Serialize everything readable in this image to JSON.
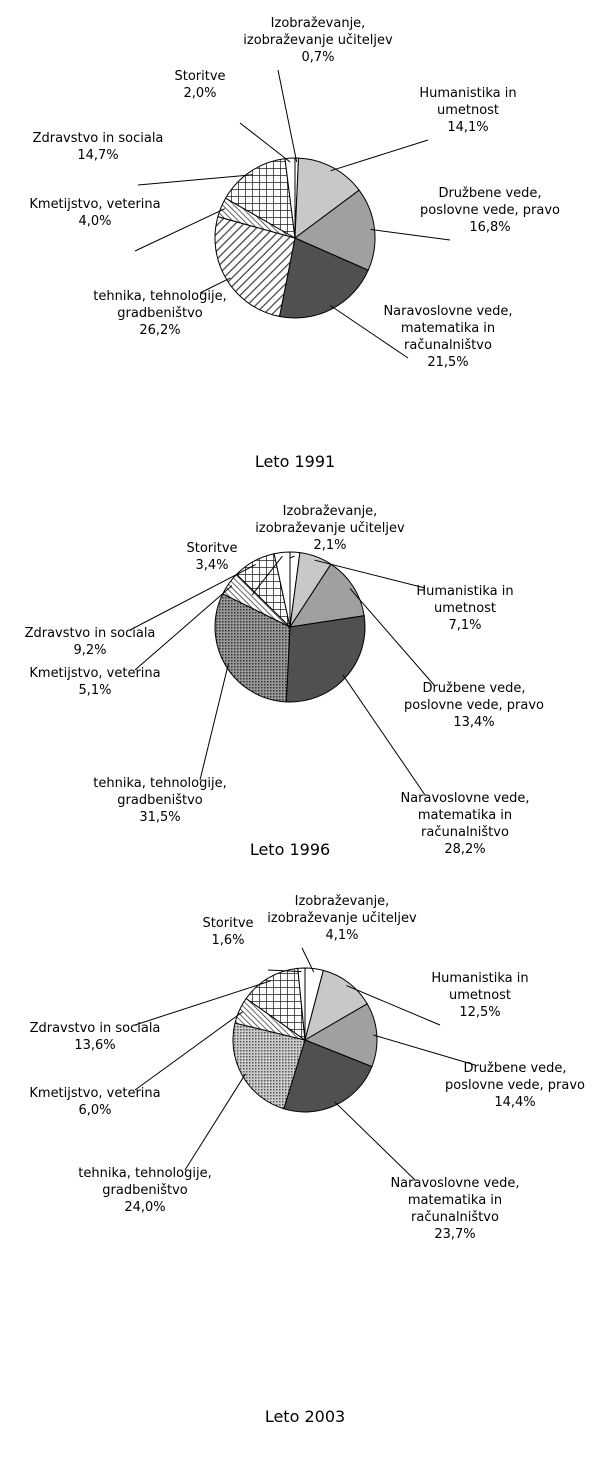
{
  "chart_data": [
    {
      "type": "pie",
      "title": "Leto 1991",
      "categories": [
        "Izobraževanje, izobraževanje učiteljev",
        "Humanistika in umetnost",
        "Družbene vede, poslovne vede, pravo",
        "Naravoslovne vede, matematika in računalništvo",
        "tehnika, tehnologije, gradbeništvo",
        "Kmetijstvo, veterina",
        "Zdravstvo in sociala",
        "Storitve"
      ],
      "values": [
        0.7,
        14.1,
        16.8,
        21.5,
        26.2,
        4.0,
        14.7,
        2.0
      ],
      "value_labels": [
        "0,7%",
        "14,1%",
        "16,8%",
        "21,5%",
        "26,2%",
        "4,0%",
        "14,7%",
        "2,0%"
      ]
    },
    {
      "type": "pie",
      "title": "Leto 1996",
      "categories": [
        "Izobraževanje, izobraževanje učiteljev",
        "Humanistika in umetnost",
        "Družbene vede, poslovne vede, pravo",
        "Naravoslovne vede, matematika in računalništvo",
        "tehnika, tehnologije, gradbeništvo",
        "Kmetijstvo, veterina",
        "Zdravstvo in sociala",
        "Storitve"
      ],
      "values": [
        2.1,
        7.1,
        13.4,
        28.2,
        31.5,
        5.1,
        9.2,
        3.4
      ],
      "value_labels": [
        "2,1%",
        "7,1%",
        "13,4%",
        "28,2%",
        "31,5%",
        "5,1%",
        "9,2%",
        "3,4%"
      ]
    },
    {
      "type": "pie",
      "title": "Leto 2003",
      "categories": [
        "Izobraževanje, izobraževanje učiteljev",
        "Humanistika in umetnost",
        "Družbene vede, poslovne vede, pravo",
        "Naravoslovne vede, matematika in računalništvo",
        "tehnika, tehnologije, gradbeništvo",
        "Kmetijstvo, veterina",
        "Zdravstvo in sociala",
        "Storitve"
      ],
      "values": [
        4.1,
        12.5,
        14.4,
        23.7,
        24.0,
        6.0,
        13.6,
        1.6
      ],
      "value_labels": [
        "4,1%",
        "12,5%",
        "14,4%",
        "23,7%",
        "24,0%",
        "6,0%",
        "13,6%",
        "1,6%"
      ]
    }
  ]
}
